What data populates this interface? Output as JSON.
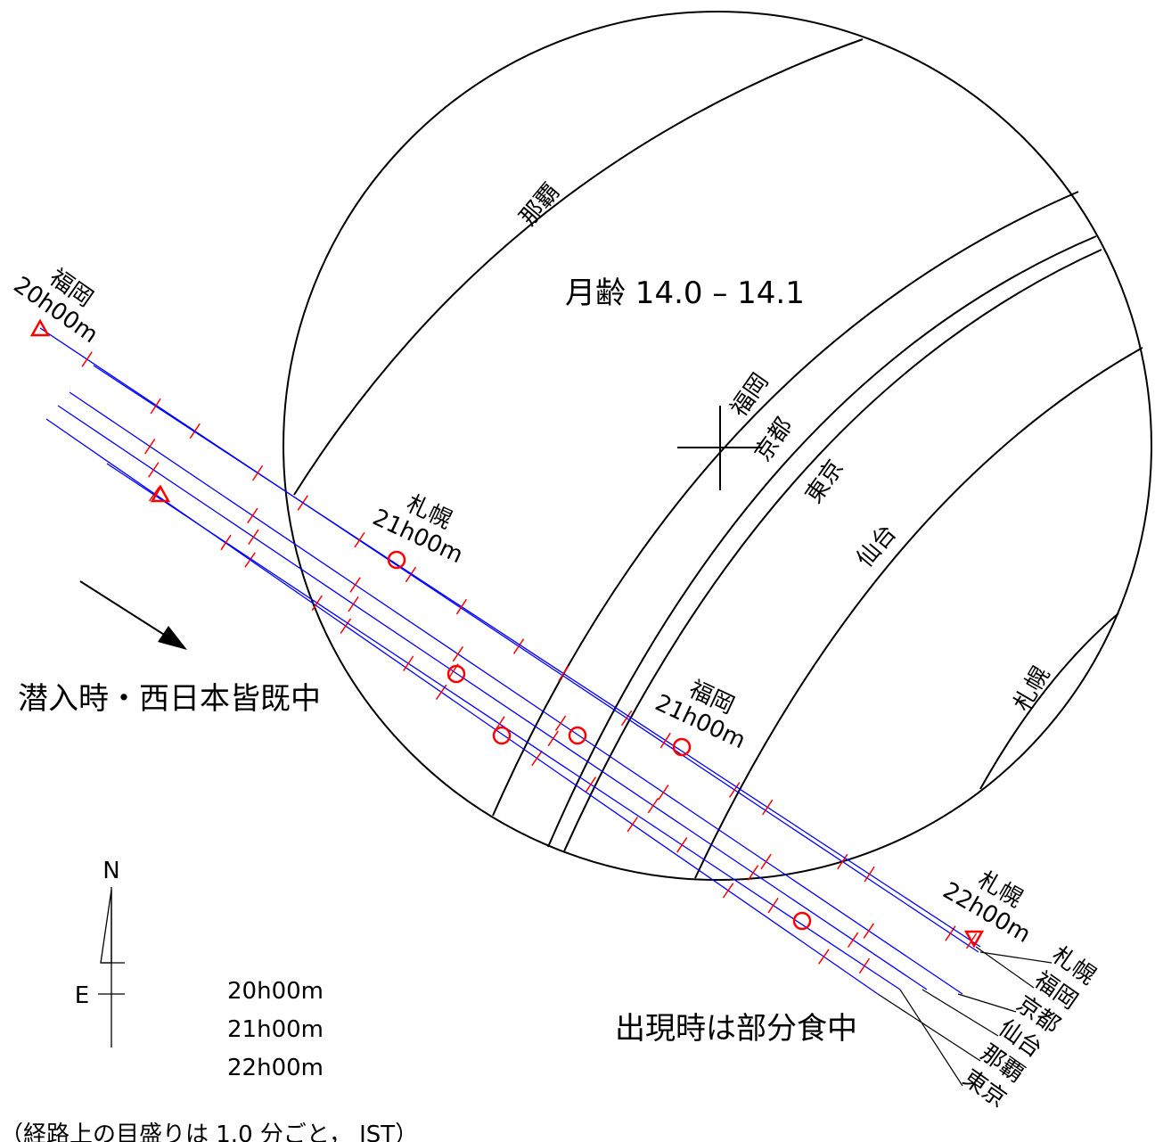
{
  "title": "月齢  14.0 – 14.1",
  "notes": {
    "ingress": "潜入時・西日本皆既中",
    "egress": "出現時は部分食中",
    "footnote": "（経路上の目盛りは 1.0 分ごと， JST）"
  },
  "compass": {
    "north": "N",
    "east": "E"
  },
  "legend": [
    "20h00m",
    "21h00m",
    "22h00m"
  ],
  "limb_curves": [
    "那覇",
    "福岡",
    "京都",
    "東京",
    "仙台",
    "札幌"
  ],
  "path_marks": [
    {
      "city": "福岡",
      "time": "20h00m"
    },
    {
      "city": "札幌",
      "time": "21h00m"
    },
    {
      "city": "福岡",
      "time": "21h00m"
    },
    {
      "city": "札幌",
      "time": "22h00m"
    }
  ],
  "path_ends": [
    "札幌",
    "福岡",
    "京都",
    "仙台",
    "那覇",
    "東京"
  ]
}
